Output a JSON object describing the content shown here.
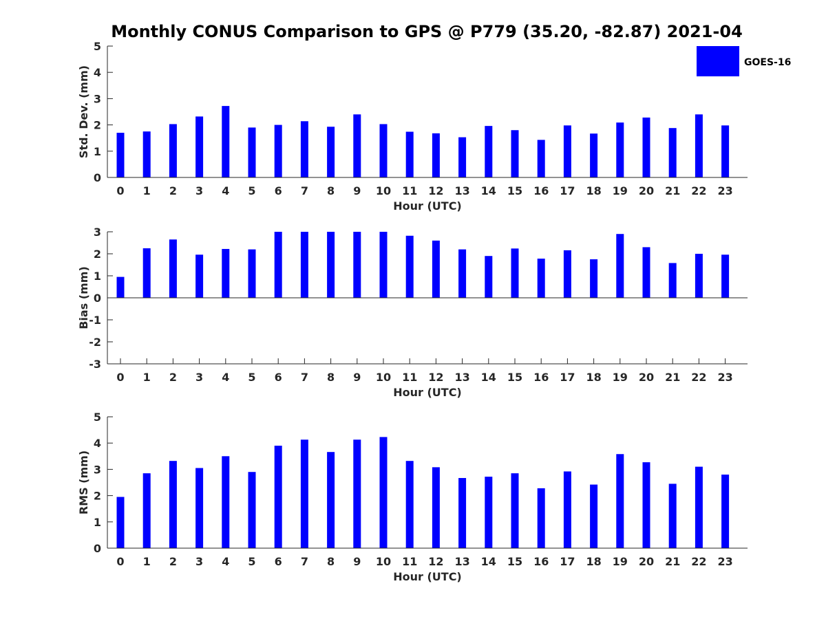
{
  "title": "Monthly CONUS Comparison to GPS @ P779 (35.20, -82.87) 2021-04",
  "bar_color": "#0000ff",
  "legend": {
    "label": "GOES-16",
    "placement": "top-right"
  },
  "chart_data": [
    {
      "type": "bar",
      "categories": [
        "0",
        "1",
        "2",
        "3",
        "4",
        "5",
        "6",
        "7",
        "8",
        "9",
        "10",
        "11",
        "12",
        "13",
        "14",
        "15",
        "16",
        "17",
        "18",
        "19",
        "20",
        "21",
        "22",
        "23"
      ],
      "series": [
        {
          "name": "GOES-16",
          "values": [
            1.7,
            1.75,
            2.03,
            2.32,
            2.72,
            1.9,
            2.0,
            2.14,
            1.93,
            2.4,
            2.03,
            1.74,
            1.68,
            1.53,
            1.96,
            1.8,
            1.43,
            1.98,
            1.67,
            2.09,
            2.28,
            1.88,
            2.4,
            1.98
          ]
        }
      ],
      "xlabel": "Hour (UTC)",
      "ylabel": "Std. Dev. (mm)",
      "ylim": [
        0,
        5
      ],
      "yticks": [
        "0",
        "1",
        "2",
        "3",
        "4",
        "5"
      ]
    },
    {
      "type": "bar",
      "categories": [
        "0",
        "1",
        "2",
        "3",
        "4",
        "5",
        "6",
        "7",
        "8",
        "9",
        "10",
        "11",
        "12",
        "13",
        "14",
        "15",
        "16",
        "17",
        "18",
        "19",
        "20",
        "21",
        "22",
        "23"
      ],
      "series": [
        {
          "name": "GOES-16",
          "values": [
            0.95,
            2.25,
            2.65,
            1.96,
            2.22,
            2.2,
            3.0,
            3.0,
            3.0,
            3.0,
            3.0,
            2.82,
            2.6,
            2.2,
            1.9,
            2.24,
            1.78,
            2.16,
            1.75,
            2.9,
            2.3,
            1.58,
            2.0,
            1.96
          ]
        }
      ],
      "xlabel": "Hour (UTC)",
      "ylabel": "Bias (mm)",
      "ylim": [
        -3,
        3
      ],
      "yticks": [
        "-3",
        "-2",
        "-1",
        "0",
        "1",
        "2",
        "3"
      ]
    },
    {
      "type": "bar",
      "categories": [
        "0",
        "1",
        "2",
        "3",
        "4",
        "5",
        "6",
        "7",
        "8",
        "9",
        "10",
        "11",
        "12",
        "13",
        "14",
        "15",
        "16",
        "17",
        "18",
        "19",
        "20",
        "21",
        "22",
        "23"
      ],
      "series": [
        {
          "name": "GOES-16",
          "values": [
            1.95,
            2.85,
            3.32,
            3.05,
            3.5,
            2.9,
            3.9,
            4.13,
            3.66,
            4.13,
            4.23,
            3.32,
            3.08,
            2.67,
            2.72,
            2.85,
            2.28,
            2.92,
            2.42,
            3.58,
            3.27,
            2.45,
            3.1,
            2.8
          ]
        }
      ],
      "xlabel": "Hour (UTC)",
      "ylabel": "RMS (mm)",
      "ylim": [
        0,
        5
      ],
      "yticks": [
        "0",
        "1",
        "2",
        "3",
        "4",
        "5"
      ]
    }
  ]
}
